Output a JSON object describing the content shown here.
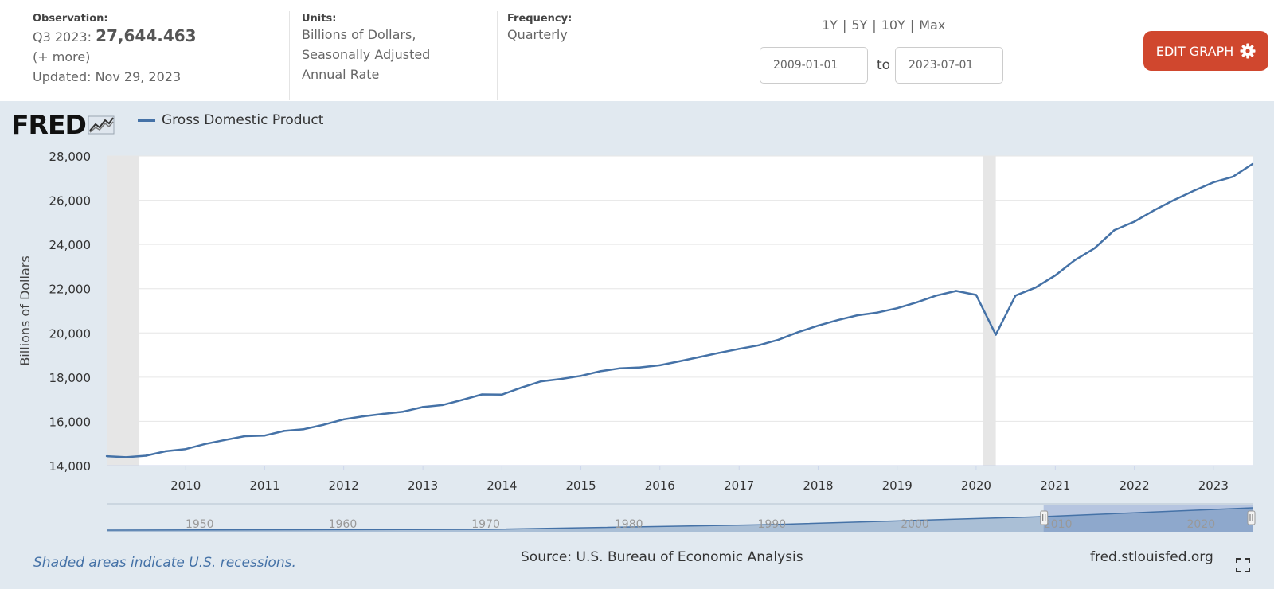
{
  "header": {
    "observation": {
      "label": "Observation:",
      "period": "Q3 2023:",
      "value": "27,644.463",
      "more": "(+ more)",
      "updated": "Updated: Nov 29, 2023"
    },
    "units": {
      "label": "Units:",
      "line1": "Billions of Dollars,",
      "line2": "Seasonally Adjusted",
      "line3": "Annual Rate"
    },
    "frequency": {
      "label": "Frequency:",
      "value": "Quarterly"
    },
    "ranges": [
      "1Y",
      "5Y",
      "10Y",
      "Max"
    ],
    "range_separator": "|",
    "start_date": "2009-01-01",
    "to_label": "to",
    "end_date": "2023-07-01",
    "edit_button": "EDIT GRAPH",
    "edit_icon": "gear-icon"
  },
  "logo": {
    "text": "FRED",
    "icon": "line-chart-icon"
  },
  "footer": {
    "recession_note": "Shaded areas indicate U.S. recessions.",
    "source": "Source: U.S. Bureau of Economic Analysis",
    "site": "fred.stlouisfed.org",
    "fullscreen_icon": "fullscreen-icon"
  },
  "colors": {
    "series": "#4572a7",
    "edit_button": "#d0472e",
    "chart_background": "#e1e9f0",
    "recession_shade": "#e6e6e6"
  },
  "chart_data": {
    "type": "line",
    "title": "",
    "xlabel": "",
    "ylabel": "Billions of Dollars",
    "ylim": [
      14000,
      28000
    ],
    "xlim": [
      "2009-01-01",
      "2023-07-01"
    ],
    "yticks": [
      14000,
      16000,
      18000,
      20000,
      22000,
      24000,
      26000,
      28000
    ],
    "ytick_labels": [
      "14,000",
      "16,000",
      "18,000",
      "20,000",
      "22,000",
      "24,000",
      "26,000",
      "28,000"
    ],
    "xtick_labels": [
      "2010",
      "2011",
      "2012",
      "2013",
      "2014",
      "2015",
      "2016",
      "2017",
      "2018",
      "2019",
      "2020",
      "2021",
      "2022",
      "2023"
    ],
    "grid": true,
    "legend": "top-left",
    "recessions": [
      {
        "start": "2009-01-01",
        "end": "2009-06-01"
      },
      {
        "start": "2020-02-01",
        "end": "2020-04-01"
      }
    ],
    "navigator_ticks": [
      "1950",
      "1960",
      "1970",
      "1980",
      "1990",
      "2000",
      "2010",
      "2020"
    ],
    "series": [
      {
        "name": "Gross Domestic Product",
        "color": "#4572a7",
        "x": [
          "2009-01-01",
          "2009-04-01",
          "2009-07-01",
          "2009-10-01",
          "2010-01-01",
          "2010-04-01",
          "2010-07-01",
          "2010-10-01",
          "2011-01-01",
          "2011-04-01",
          "2011-07-01",
          "2011-10-01",
          "2012-01-01",
          "2012-04-01",
          "2012-07-01",
          "2012-10-01",
          "2013-01-01",
          "2013-04-01",
          "2013-07-01",
          "2013-10-01",
          "2014-01-01",
          "2014-04-01",
          "2014-07-01",
          "2014-10-01",
          "2015-01-01",
          "2015-04-01",
          "2015-07-01",
          "2015-10-01",
          "2016-01-01",
          "2016-04-01",
          "2016-07-01",
          "2016-10-01",
          "2017-01-01",
          "2017-04-01",
          "2017-07-01",
          "2017-10-01",
          "2018-01-01",
          "2018-04-01",
          "2018-07-01",
          "2018-10-01",
          "2019-01-01",
          "2019-04-01",
          "2019-07-01",
          "2019-10-01",
          "2020-01-01",
          "2020-04-01",
          "2020-07-01",
          "2020-10-01",
          "2021-01-01",
          "2021-04-01",
          "2021-07-01",
          "2021-10-01",
          "2022-01-01",
          "2022-04-01",
          "2022-07-01",
          "2022-10-01",
          "2023-01-01",
          "2023-04-01",
          "2023-07-01"
        ],
        "values": [
          14430,
          14380,
          14450,
          14650,
          14750,
          14980,
          15160,
          15330,
          15360,
          15570,
          15650,
          15850,
          16090,
          16230,
          16340,
          16440,
          16650,
          16740,
          16970,
          17220,
          17210,
          17530,
          17810,
          17920,
          18060,
          18270,
          18400,
          18440,
          18540,
          18720,
          18910,
          19100,
          19280,
          19440,
          19690,
          20040,
          20330,
          20580,
          20800,
          20920,
          21120,
          21380,
          21690,
          21900,
          21720,
          19920,
          21690,
          22050,
          22600,
          23290,
          23830,
          24650,
          25030,
          25540,
          26000,
          26420,
          26810,
          27060,
          27640
        ]
      }
    ]
  }
}
